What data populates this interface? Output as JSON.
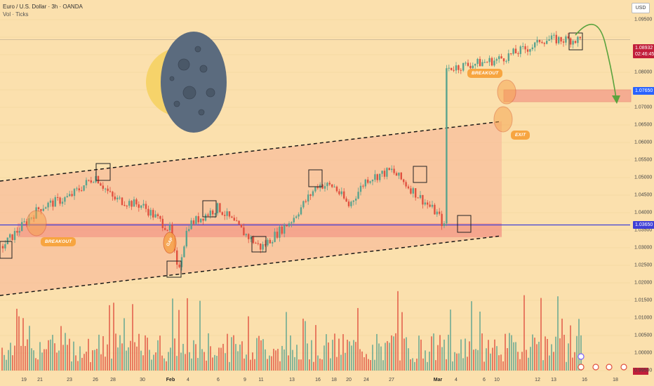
{
  "header": {
    "title": "Euro / U.S. Dollar · 3h · OANDA",
    "subtitle": "Vol · Ticks"
  },
  "toolbar": {
    "currency_label": "USD"
  },
  "price_labels": {
    "last_price": "1.08932",
    "countdown": "02:46:45",
    "resistance": "1.07650",
    "support": "1.03650"
  },
  "annotations": {
    "breakout_left": "BREAKOUT",
    "breakout_right": "BREAKOUT",
    "exit": "EXIT",
    "gap": "GAP"
  },
  "colors": {
    "background": "#fbe0ad",
    "up_candle": "#5aa38e",
    "down_candle": "#e0503f",
    "channel_fill": "#f7b295",
    "zone_fill": "#f28a80",
    "support_line": "#3f3fd6",
    "annotation": "#f7a540",
    "last_price_box": "#c21e3a",
    "resistance_box": "#2962ff",
    "arrow": "#5aa33e"
  },
  "chart_data": {
    "type": "candlestick",
    "title": "Euro / U.S. Dollar · 3h · OANDA",
    "ylim": [
      0.995,
      1.1
    ],
    "y_ticks": [
      "1.09500",
      "1.09000",
      "1.08500",
      "1.08000",
      "1.07500",
      "1.07000",
      "1.06500",
      "1.06000",
      "1.05500",
      "1.05000",
      "1.04500",
      "1.04000",
      "1.03500",
      "1.03000",
      "1.02500",
      "1.02000",
      "1.01500",
      "1.01000",
      "1.00500",
      "1.00000",
      "0.99500"
    ],
    "x_ticks": [
      "19",
      "21",
      "23",
      "26",
      "28",
      "30",
      "Feb",
      "4",
      "6",
      "9",
      "11",
      "13",
      "16",
      "18",
      "20",
      "24",
      "27",
      "Mar",
      "4",
      "6",
      "10",
      "12",
      "13",
      "16",
      "18"
    ],
    "price_path": [
      [
        "19",
        1.0305
      ],
      [
        "21",
        1.0415
      ],
      [
        "23",
        1.0445
      ],
      [
        "26",
        1.0505
      ],
      [
        "28",
        1.044
      ],
      [
        "30",
        1.042
      ],
      [
        "Feb",
        1.035
      ],
      [
        "Feb",
        1.023
      ],
      [
        "4",
        1.0365
      ],
      [
        "6",
        1.0415
      ],
      [
        "9",
        1.034
      ],
      [
        "11",
        1.03
      ],
      [
        "13",
        1.038
      ],
      [
        "16",
        1.048
      ],
      [
        "18",
        1.0475
      ],
      [
        "20",
        1.042
      ],
      [
        "24",
        1.0495
      ],
      [
        "27",
        1.052
      ],
      [
        "Mar",
        1.0395
      ],
      [
        "Mar",
        1.0355
      ],
      [
        "4",
        1.0485
      ],
      [
        "6",
        1.07
      ],
      [
        "10",
        1.0835
      ],
      [
        "12",
        1.088
      ],
      [
        "13",
        1.0893
      ]
    ],
    "levels": {
      "resistance": 1.0765,
      "support": 1.0365,
      "last": 1.08932
    },
    "volume_series": "Vol · Ticks"
  }
}
